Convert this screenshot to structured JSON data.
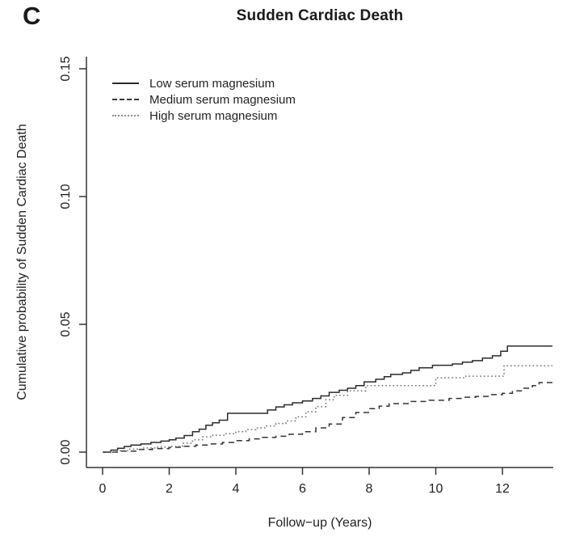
{
  "panel_label": "C",
  "colors": {
    "background": "#ffffff",
    "axis": "#333333",
    "text": "#222222",
    "solid_line": "#2b2b2b",
    "dashed_line": "#333333",
    "dotted_line": "#6f6f6f"
  },
  "chart_data": {
    "type": "line",
    "subtype": "step",
    "title": "Sudden Cardiac Death",
    "xlabel": "Follow−up (Years)",
    "ylabel": "Cumulative probability of Sudden Cardiac Death",
    "xlim": [
      0,
      13.5
    ],
    "ylim": [
      0,
      0.155
    ],
    "xticks": [
      0,
      2,
      4,
      6,
      8,
      10,
      12
    ],
    "ytick_labels": [
      "0.00",
      "0.05",
      "0.10",
      "0.15"
    ],
    "ytick_values": [
      0,
      0.05,
      0.1,
      0.15
    ],
    "grid": false,
    "legend_position": "top-left",
    "series": [
      {
        "name": "Low serum magnesium",
        "style": "solid",
        "color": "#2b2b2b",
        "points": [
          [
            0,
            0
          ],
          [
            0.25,
            0.0008
          ],
          [
            0.45,
            0.0015
          ],
          [
            0.65,
            0.0022
          ],
          [
            0.85,
            0.0028
          ],
          [
            1.15,
            0.0032
          ],
          [
            1.45,
            0.0038
          ],
          [
            1.75,
            0.0043
          ],
          [
            2.0,
            0.0048
          ],
          [
            2.2,
            0.0055
          ],
          [
            2.45,
            0.0065
          ],
          [
            2.7,
            0.008
          ],
          [
            2.9,
            0.009
          ],
          [
            3.1,
            0.0105
          ],
          [
            3.3,
            0.0115
          ],
          [
            3.5,
            0.0125
          ],
          [
            3.75,
            0.0152
          ],
          [
            4.95,
            0.0165
          ],
          [
            5.2,
            0.0177
          ],
          [
            5.45,
            0.0185
          ],
          [
            5.7,
            0.0193
          ],
          [
            6.0,
            0.02
          ],
          [
            6.3,
            0.021
          ],
          [
            6.55,
            0.022
          ],
          [
            6.8,
            0.0234
          ],
          [
            7.1,
            0.0242
          ],
          [
            7.35,
            0.025
          ],
          [
            7.6,
            0.026
          ],
          [
            7.85,
            0.0275
          ],
          [
            8.2,
            0.0285
          ],
          [
            8.45,
            0.0295
          ],
          [
            8.65,
            0.0304
          ],
          [
            9.0,
            0.031
          ],
          [
            9.25,
            0.032
          ],
          [
            9.5,
            0.033
          ],
          [
            9.9,
            0.034
          ],
          [
            10.5,
            0.0345
          ],
          [
            10.8,
            0.0352
          ],
          [
            11.1,
            0.0358
          ],
          [
            11.4,
            0.0368
          ],
          [
            11.7,
            0.0377
          ],
          [
            11.95,
            0.0395
          ],
          [
            12.15,
            0.0415
          ]
        ]
      },
      {
        "name": "Medium serum magnesium",
        "style": "dashed",
        "color": "#333333",
        "points": [
          [
            0,
            0
          ],
          [
            0.5,
            0.0004
          ],
          [
            1.0,
            0.001
          ],
          [
            1.5,
            0.0014
          ],
          [
            2.0,
            0.0019
          ],
          [
            2.4,
            0.0023
          ],
          [
            2.8,
            0.0028
          ],
          [
            3.2,
            0.0032
          ],
          [
            3.6,
            0.0038
          ],
          [
            4.0,
            0.0045
          ],
          [
            4.4,
            0.0052
          ],
          [
            4.8,
            0.0058
          ],
          [
            5.2,
            0.0062
          ],
          [
            5.6,
            0.007
          ],
          [
            6.0,
            0.008
          ],
          [
            6.4,
            0.0095
          ],
          [
            6.8,
            0.011
          ],
          [
            7.2,
            0.0135
          ],
          [
            7.6,
            0.0155
          ],
          [
            8.0,
            0.017
          ],
          [
            8.3,
            0.018
          ],
          [
            8.6,
            0.019
          ],
          [
            9.2,
            0.0198
          ],
          [
            9.8,
            0.0203
          ],
          [
            10.4,
            0.021
          ],
          [
            10.8,
            0.0215
          ],
          [
            11.2,
            0.0218
          ],
          [
            11.6,
            0.0225
          ],
          [
            12.0,
            0.023
          ],
          [
            12.3,
            0.024
          ],
          [
            12.6,
            0.025
          ],
          [
            12.9,
            0.026
          ],
          [
            13.1,
            0.0272
          ]
        ]
      },
      {
        "name": "High serum magnesium",
        "style": "dotted",
        "color": "#6f6f6f",
        "points": [
          [
            0,
            0
          ],
          [
            0.4,
            0.0006
          ],
          [
            0.8,
            0.0012
          ],
          [
            1.2,
            0.0016
          ],
          [
            1.6,
            0.002
          ],
          [
            2.0,
            0.0022
          ],
          [
            2.4,
            0.0035
          ],
          [
            2.7,
            0.0048
          ],
          [
            3.0,
            0.006
          ],
          [
            3.3,
            0.0066
          ],
          [
            3.7,
            0.0072
          ],
          [
            4.0,
            0.008
          ],
          [
            4.3,
            0.0088
          ],
          [
            4.6,
            0.0095
          ],
          [
            4.9,
            0.0102
          ],
          [
            5.2,
            0.0112
          ],
          [
            5.5,
            0.0122
          ],
          [
            5.8,
            0.0138
          ],
          [
            6.1,
            0.0158
          ],
          [
            6.4,
            0.0178
          ],
          [
            6.7,
            0.0205
          ],
          [
            6.95,
            0.0222
          ],
          [
            7.35,
            0.024
          ],
          [
            7.9,
            0.026
          ],
          [
            10.0,
            0.0291
          ],
          [
            10.9,
            0.0297
          ],
          [
            12.05,
            0.0338
          ]
        ]
      }
    ]
  }
}
